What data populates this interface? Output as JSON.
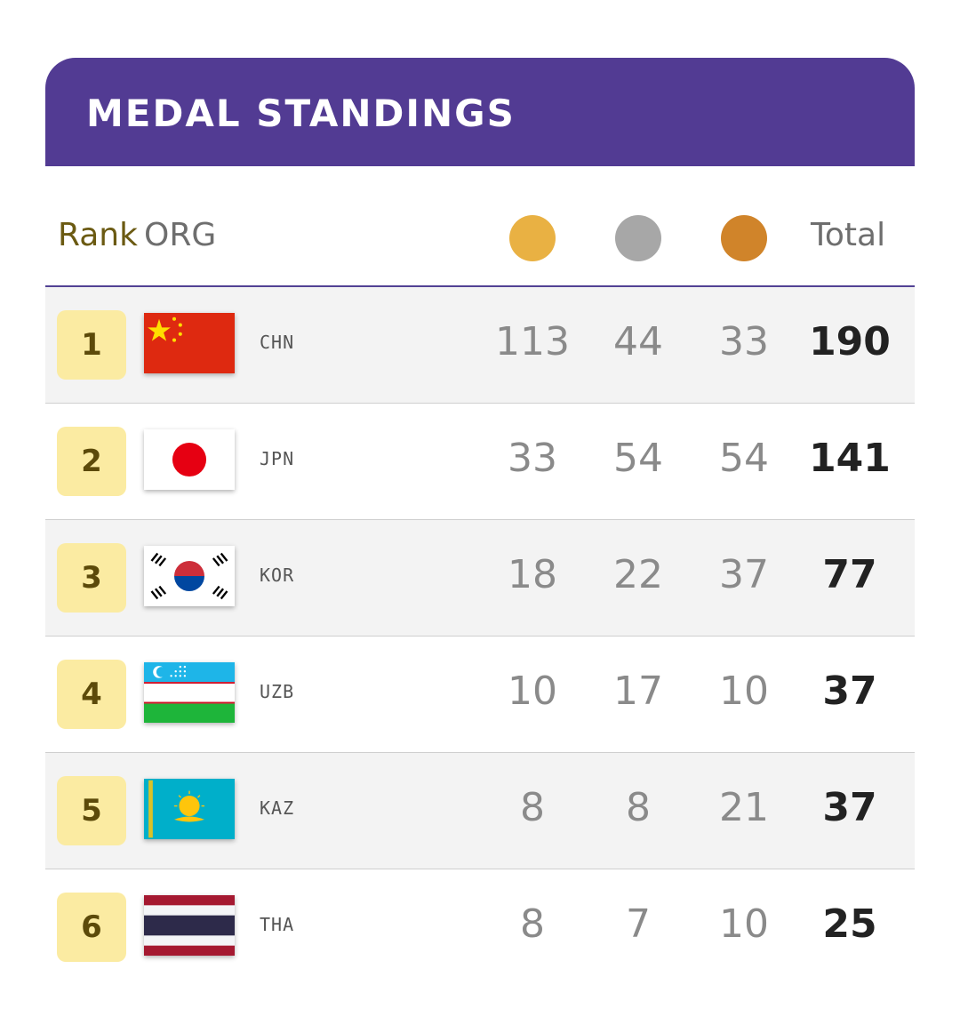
{
  "title": "MEDAL STANDINGS",
  "headers": {
    "rank": "Rank",
    "org": "ORG",
    "total": "Total"
  },
  "medal_colors": {
    "gold": "#e9b143",
    "silver": "#a7a7a7",
    "bronze": "#d0842a"
  },
  "rows": [
    {
      "rank": "1",
      "org": "CHN",
      "flag": "china-flag",
      "gold": "113",
      "silver": "44",
      "bronze": "33",
      "total": "190"
    },
    {
      "rank": "2",
      "org": "JPN",
      "flag": "japan-flag",
      "gold": "33",
      "silver": "54",
      "bronze": "54",
      "total": "141"
    },
    {
      "rank": "3",
      "org": "KOR",
      "flag": "korea-flag",
      "gold": "18",
      "silver": "22",
      "bronze": "37",
      "total": "77"
    },
    {
      "rank": "4",
      "org": "UZB",
      "flag": "uzbekistan-flag",
      "gold": "10",
      "silver": "17",
      "bronze": "10",
      "total": "37"
    },
    {
      "rank": "5",
      "org": "KAZ",
      "flag": "kazakhstan-flag",
      "gold": "8",
      "silver": "8",
      "bronze": "21",
      "total": "37"
    },
    {
      "rank": "6",
      "org": "THA",
      "flag": "thailand-flag",
      "gold": "8",
      "silver": "7",
      "bronze": "10",
      "total": "25"
    }
  ]
}
